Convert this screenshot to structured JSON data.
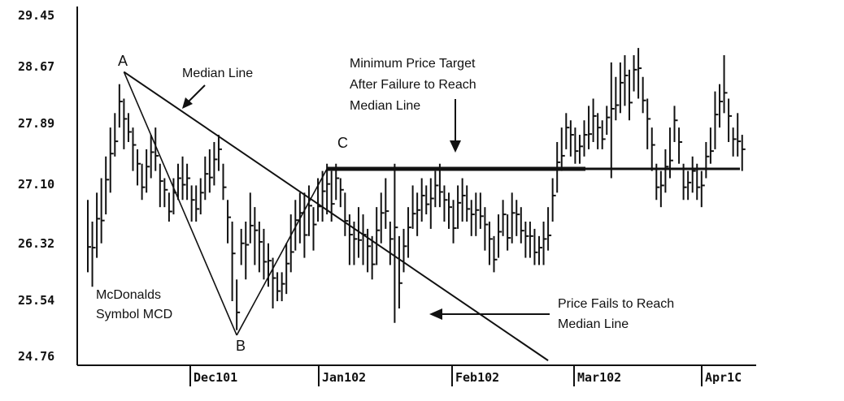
{
  "chart_data": {
    "type": "ohlc",
    "title": "",
    "xlabel": "",
    "ylabel": "",
    "ylim": [
      24.76,
      29.45
    ],
    "y_ticks": [
      "29.45",
      "28.67",
      "27.89",
      "27.10",
      "26.32",
      "25.54",
      "24.76"
    ],
    "x_ticks": [
      "Dec101",
      "Jan102",
      "Feb102",
      "Mar102",
      "Apr1C"
    ],
    "grid": false,
    "series": [
      {
        "values": [
          [
            26.9,
            25.9
          ],
          [
            26.6,
            25.7
          ],
          [
            27.0,
            26.1
          ],
          [
            27.2,
            26.3
          ],
          [
            27.5,
            26.7
          ],
          [
            27.9,
            27.0
          ],
          [
            28.1,
            27.5
          ],
          [
            28.5,
            27.9
          ],
          [
            28.3,
            27.6
          ],
          [
            28.1,
            27.7
          ],
          [
            27.9,
            27.3
          ],
          [
            27.6,
            27.1
          ],
          [
            27.4,
            26.9
          ],
          [
            27.6,
            27.0
          ],
          [
            27.8,
            27.2
          ],
          [
            27.9,
            27.3
          ],
          [
            27.4,
            26.8
          ],
          [
            27.2,
            26.8
          ],
          [
            27.0,
            26.6
          ],
          [
            27.2,
            26.7
          ],
          [
            27.4,
            26.9
          ],
          [
            27.5,
            26.9
          ],
          [
            27.4,
            26.9
          ],
          [
            27.1,
            26.6
          ],
          [
            27.1,
            26.6
          ],
          [
            27.2,
            26.7
          ],
          [
            27.5,
            26.9
          ],
          [
            27.6,
            27.0
          ],
          [
            27.7,
            27.1
          ],
          [
            27.8,
            27.3
          ],
          [
            27.4,
            26.9
          ],
          [
            26.9,
            26.3
          ],
          [
            26.6,
            25.5
          ],
          [
            25.8,
            25.1
          ],
          [
            26.5,
            26.0
          ],
          [
            26.6,
            25.8
          ],
          [
            27.0,
            26.3
          ],
          [
            26.8,
            26.0
          ],
          [
            26.6,
            25.9
          ],
          [
            26.5,
            25.8
          ],
          [
            26.3,
            25.7
          ],
          [
            26.1,
            25.4
          ],
          [
            25.9,
            25.5
          ],
          [
            25.9,
            25.5
          ],
          [
            26.3,
            25.6
          ],
          [
            26.7,
            25.9
          ],
          [
            26.9,
            26.2
          ],
          [
            27.0,
            26.3
          ],
          [
            27.0,
            26.1
          ],
          [
            27.1,
            26.4
          ],
          [
            26.8,
            26.2
          ],
          [
            27.2,
            26.6
          ],
          [
            27.3,
            26.6
          ],
          [
            27.4,
            26.7
          ],
          [
            27.3,
            26.6
          ],
          [
            27.4,
            26.9
          ],
          [
            27.2,
            26.8
          ],
          [
            27.0,
            26.4
          ],
          [
            26.7,
            26.0
          ],
          [
            26.6,
            26.0
          ],
          [
            26.8,
            26.1
          ],
          [
            26.7,
            26.0
          ],
          [
            26.5,
            25.9
          ],
          [
            26.4,
            25.8
          ],
          [
            26.8,
            26.0
          ],
          [
            27.0,
            26.3
          ],
          [
            27.2,
            26.5
          ],
          [
            26.6,
            26.0
          ],
          [
            27.4,
            25.2
          ],
          [
            26.4,
            25.4
          ],
          [
            26.5,
            25.9
          ],
          [
            26.8,
            26.1
          ],
          [
            27.1,
            26.5
          ],
          [
            27.0,
            26.4
          ],
          [
            27.2,
            26.6
          ],
          [
            27.1,
            26.7
          ],
          [
            27.2,
            26.5
          ],
          [
            27.3,
            26.8
          ],
          [
            27.4,
            26.8
          ],
          [
            27.1,
            26.6
          ],
          [
            27.0,
            26.5
          ],
          [
            26.9,
            26.3
          ],
          [
            27.1,
            26.5
          ],
          [
            27.2,
            26.6
          ],
          [
            27.1,
            26.6
          ],
          [
            26.9,
            26.4
          ],
          [
            27.0,
            26.4
          ],
          [
            27.0,
            26.5
          ],
          [
            26.8,
            26.2
          ],
          [
            26.6,
            26.0
          ],
          [
            26.4,
            25.9
          ],
          [
            26.7,
            26.1
          ],
          [
            26.9,
            26.4
          ],
          [
            26.7,
            26.2
          ],
          [
            27.0,
            26.3
          ],
          [
            26.9,
            26.4
          ],
          [
            26.8,
            26.3
          ],
          [
            26.6,
            26.1
          ],
          [
            26.6,
            26.1
          ],
          [
            26.5,
            26.0
          ],
          [
            26.4,
            26.0
          ],
          [
            26.6,
            26.0
          ],
          [
            26.8,
            26.2
          ],
          [
            27.2,
            26.6
          ],
          [
            27.7,
            27.0
          ],
          [
            27.9,
            27.3
          ],
          [
            28.1,
            27.6
          ],
          [
            28.0,
            27.5
          ],
          [
            27.9,
            27.4
          ],
          [
            27.8,
            27.4
          ],
          [
            28.0,
            27.5
          ],
          [
            28.2,
            27.6
          ],
          [
            28.3,
            27.7
          ],
          [
            28.1,
            27.6
          ],
          [
            28.0,
            27.6
          ],
          [
            28.2,
            27.8
          ],
          [
            28.8,
            27.2
          ],
          [
            28.6,
            28.0
          ],
          [
            28.8,
            28.1
          ],
          [
            28.9,
            28.2
          ],
          [
            28.7,
            28.0
          ],
          [
            28.9,
            28.4
          ],
          [
            29.0,
            28.3
          ],
          [
            28.6,
            28.1
          ],
          [
            28.3,
            27.6
          ],
          [
            27.9,
            27.3
          ],
          [
            27.4,
            26.9
          ],
          [
            27.3,
            26.8
          ],
          [
            27.6,
            27.0
          ],
          [
            27.9,
            27.2
          ],
          [
            28.2,
            27.7
          ],
          [
            27.9,
            27.4
          ],
          [
            27.4,
            26.9
          ],
          [
            27.3,
            26.9
          ],
          [
            27.5,
            27.0
          ],
          [
            27.4,
            26.9
          ],
          [
            27.3,
            26.8
          ],
          [
            27.7,
            27.2
          ],
          [
            27.9,
            27.4
          ],
          [
            28.4,
            27.6
          ],
          [
            28.5,
            27.9
          ],
          [
            28.9,
            28.1
          ],
          [
            28.3,
            27.7
          ],
          [
            27.9,
            27.5
          ],
          [
            28.1,
            27.5
          ],
          [
            27.8,
            27.3
          ]
        ]
      }
    ],
    "annotations": {
      "point_a": "A",
      "point_b": "B",
      "point_c": "C",
      "median_line_label": "Median Line",
      "target_lines": [
        "Minimum Price Target",
        "After Failure to Reach",
        "Median Line"
      ],
      "fail_lines": [
        "Price Fails to Reach",
        "Median Line"
      ],
      "symbol_lines": [
        "McDonalds",
        "Symbol MCD"
      ]
    },
    "lines": {
      "target_price": 27.33,
      "median_line": [
        [
          8,
          28.67
        ],
        [
          102,
          24.68
        ]
      ],
      "a_b": [
        [
          8,
          28.67
        ],
        [
          33,
          25.03
        ]
      ],
      "b_c": [
        [
          33,
          25.03
        ],
        [
          53,
          27.33
        ]
      ]
    }
  }
}
